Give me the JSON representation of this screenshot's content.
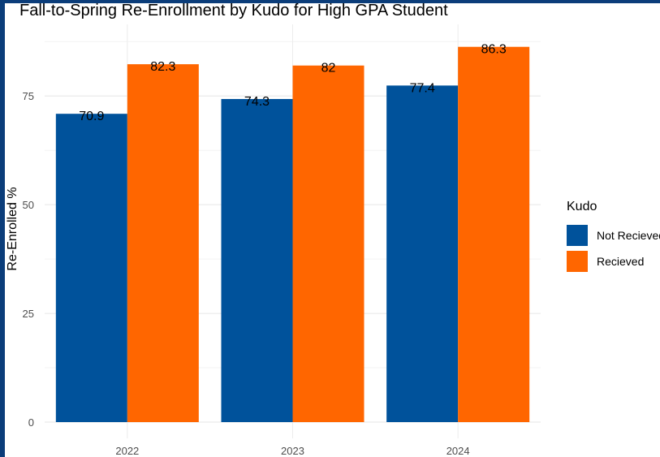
{
  "chart_data": {
    "type": "bar",
    "title": "Fall-to-Spring Re-Enrollment by Kudo for High GPA Student",
    "xlabel": "",
    "ylabel": "Re-Enrolled %",
    "categories": [
      "2022",
      "2023",
      "2024"
    ],
    "series": [
      {
        "name": "Not Recieved",
        "color": "#00529b",
        "values": [
          70.9,
          74.3,
          77.4
        ],
        "labels": [
          "70.9",
          "74.3",
          "77.4"
        ]
      },
      {
        "name": "Recieved",
        "color": "#ff6600",
        "values": [
          82.3,
          82,
          86.3
        ],
        "labels": [
          "82.3",
          "82",
          "86.3"
        ]
      }
    ],
    "y_ticks": [
      0,
      25,
      50,
      75
    ],
    "y_tick_labels": [
      "0",
      "25",
      "50",
      "75"
    ],
    "ylim": [
      0,
      90
    ],
    "grid": true,
    "legend": {
      "title": "Kudo",
      "position": "right"
    }
  }
}
